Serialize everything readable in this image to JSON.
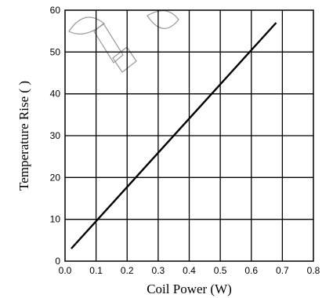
{
  "chart_data": {
    "type": "line",
    "title": "",
    "xlabel": "Coil Power (W)",
    "ylabel": "Temperature Rise ( )",
    "xlim": [
      0.0,
      0.8
    ],
    "ylim": [
      0,
      60
    ],
    "xticks": [
      "0.0",
      "0.1",
      "0.2",
      "0.3",
      "0.4",
      "0.5",
      "0.6",
      "0.7",
      "0.8"
    ],
    "yticks": [
      "0",
      "10",
      "20",
      "30",
      "40",
      "50",
      "60"
    ],
    "grid": true,
    "series": [
      {
        "x": [
          0.02,
          0.68
        ],
        "y": [
          3,
          57
        ]
      }
    ]
  }
}
